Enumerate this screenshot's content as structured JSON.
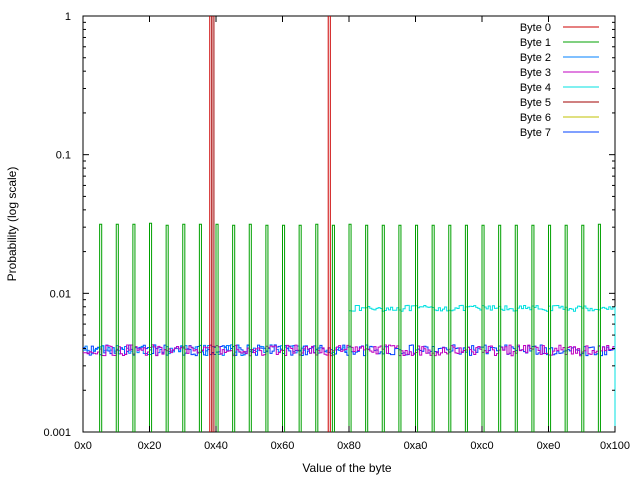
{
  "chart_data": {
    "type": "line",
    "title": "",
    "xlabel": "Value of the byte",
    "ylabel": "Probability (log scale)",
    "x_scale": "linear",
    "y_scale": "log",
    "xlim": [
      0,
      256
    ],
    "ylim": [
      0.001,
      1
    ],
    "x_ticks": [
      {
        "value": 0,
        "label": "0x0"
      },
      {
        "value": 32,
        "label": "0x20"
      },
      {
        "value": 64,
        "label": "0x40"
      },
      {
        "value": 96,
        "label": "0x60"
      },
      {
        "value": 128,
        "label": "0x80"
      },
      {
        "value": 160,
        "label": "0xa0"
      },
      {
        "value": 192,
        "label": "0xc0"
      },
      {
        "value": 224,
        "label": "0xe0"
      },
      {
        "value": 256,
        "label": "0x100"
      }
    ],
    "y_ticks": [
      {
        "value": 0.001,
        "label": "0.001"
      },
      {
        "value": 0.01,
        "label": "0.01"
      },
      {
        "value": 0.1,
        "label": "0.1"
      },
      {
        "value": 1,
        "label": "1"
      }
    ],
    "grid": false,
    "legend_position": "top-right",
    "series": [
      {
        "name": "Byte 0",
        "color": "#cc0000",
        "description_points": [
          {
            "x": 61,
            "y": 1
          },
          {
            "x": 118,
            "y": 1
          }
        ]
      },
      {
        "name": "Byte 1",
        "color": "#00a000",
        "spike_values_x": [
          8,
          16,
          24,
          32,
          40,
          48,
          56,
          64,
          72,
          80,
          88,
          96,
          104,
          112,
          120,
          128,
          136,
          144,
          152,
          160,
          168,
          176,
          184,
          192,
          200,
          208,
          216,
          224,
          232,
          240,
          248
        ],
        "spike_values_y": [
          0.0315,
          0.0315,
          0.0315,
          0.032,
          0.031,
          0.0315,
          0.0315,
          0.0315,
          0.031,
          0.0315,
          0.031,
          0.031,
          0.031,
          0.0315,
          0.031,
          0.0315,
          0.031,
          0.031,
          0.031,
          0.031,
          0.031,
          0.031,
          0.031,
          0.031,
          0.031,
          0.031,
          0.031,
          0.031,
          0.031,
          0.031,
          0.0315
        ]
      },
      {
        "name": "Byte 2",
        "color": "#0080ff",
        "baseline": 0.0039
      },
      {
        "name": "Byte 3",
        "color": "#c000c0",
        "baseline": 0.0039
      },
      {
        "name": "Byte 4",
        "color": "#00e0e0",
        "segments": [
          {
            "x_start": 128,
            "x_end": 256,
            "y": 0.0078
          }
        ]
      },
      {
        "name": "Byte 5",
        "color": "#a00000",
        "description_points": [
          {
            "x": 62,
            "y": 1
          }
        ]
      },
      {
        "name": "Byte 6",
        "color": "#c0c000",
        "values": []
      },
      {
        "name": "Byte 7",
        "color": "#0040ff",
        "baseline": 0.0039
      }
    ]
  }
}
